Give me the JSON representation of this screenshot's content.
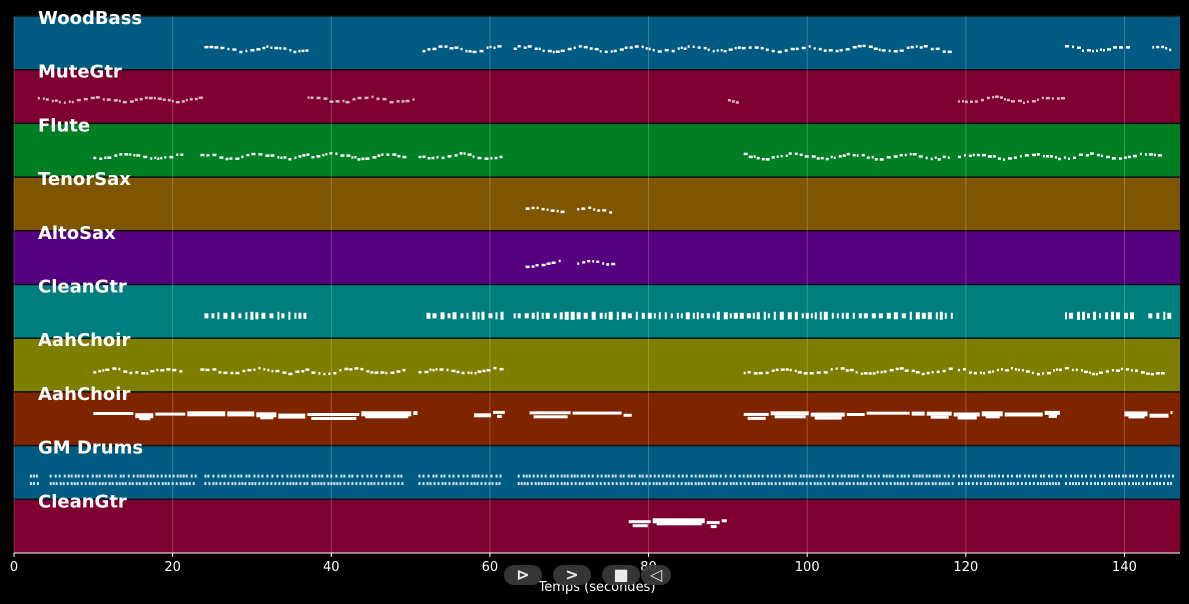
{
  "chart_data": {
    "type": "piano-roll",
    "xlabel": "Temps (secondes)",
    "xlim": [
      0,
      147
    ],
    "xticks": [
      0,
      20,
      40,
      60,
      80,
      100,
      120,
      140
    ],
    "tracks": [
      {
        "name": "WoodBass",
        "color": "#005a82",
        "note_style": "dots",
        "note_color": "#ffffff",
        "segments": [
          [
            24,
            37
          ],
          [
            51.5,
            61.5
          ],
          [
            63,
            118.5
          ],
          [
            132.5,
            141
          ],
          [
            143.5,
            146
          ]
        ]
      },
      {
        "name": "MuteGtr",
        "color": "#7e0030",
        "note_style": "dots",
        "note_color": "#d8b8c4",
        "segments": [
          [
            3,
            23.5
          ],
          [
            37,
            50.5
          ],
          [
            90,
            91.5
          ],
          [
            119,
            132
          ]
        ]
      },
      {
        "name": "Flute",
        "color": "#007e23",
        "note_style": "dots",
        "note_color": "#ffffff",
        "segments": [
          [
            10,
            21
          ],
          [
            23.5,
            37
          ],
          [
            37.5,
            49
          ],
          [
            51,
            61.5
          ],
          [
            92,
            118
          ],
          [
            119,
            145
          ]
        ]
      },
      {
        "name": "TenorSax",
        "color": "#7e5500",
        "note_style": "dots",
        "note_color": "#ffffff",
        "segments": [
          [
            64.5,
            69
          ],
          [
            71,
            75.5
          ]
        ]
      },
      {
        "name": "AltoSax",
        "color": "#55007e",
        "note_style": "dots",
        "note_color": "#ffffff",
        "segments": [
          [
            64.5,
            69
          ],
          [
            71,
            75.5
          ]
        ]
      },
      {
        "name": "CleanGtr",
        "color": "#007e7e",
        "note_style": "blocks",
        "note_color": "#ffffff",
        "segments": [
          [
            24,
            37
          ],
          [
            52,
            61.5
          ],
          [
            63,
            75
          ],
          [
            76,
            118.5
          ],
          [
            132.5,
            141.5
          ],
          [
            143,
            146
          ]
        ]
      },
      {
        "name": "AahChoir",
        "color": "#7e7e00",
        "note_style": "dots",
        "note_color": "#ffffff",
        "segments": [
          [
            10,
            21
          ],
          [
            23.5,
            37
          ],
          [
            37.5,
            49
          ],
          [
            51,
            61.5
          ],
          [
            92,
            118
          ],
          [
            119,
            145
          ]
        ]
      },
      {
        "name": "AahChoir",
        "color": "#7e2500",
        "note_style": "bars",
        "note_color": "#ffffff",
        "segments": [
          [
            10,
            51
          ],
          [
            58,
            62
          ],
          [
            65,
            78
          ],
          [
            92,
            132
          ],
          [
            140,
            146
          ]
        ]
      },
      {
        "name": "GM Drums",
        "color": "#005a82",
        "note_style": "drums",
        "note_color": "#cfe8f5",
        "segments": [
          [
            2,
            3
          ],
          [
            4.5,
            23
          ],
          [
            24,
            37
          ],
          [
            37.5,
            49
          ],
          [
            51,
            61.5
          ],
          [
            63.5,
            118.5
          ],
          [
            119,
            132
          ],
          [
            132.5,
            146
          ]
        ]
      },
      {
        "name": "CleanGtr",
        "color": "#7e0030",
        "note_style": "bars",
        "note_color": "#ffffff",
        "segments": [
          [
            77.5,
            90
          ]
        ]
      }
    ]
  },
  "controls": [
    {
      "name": "play-button",
      "glyph": "⊳"
    },
    {
      "name": "forward-button",
      "glyph": ">"
    },
    {
      "name": "stop-button",
      "glyph": "■"
    },
    {
      "name": "back-button",
      "glyph": "◁"
    }
  ]
}
